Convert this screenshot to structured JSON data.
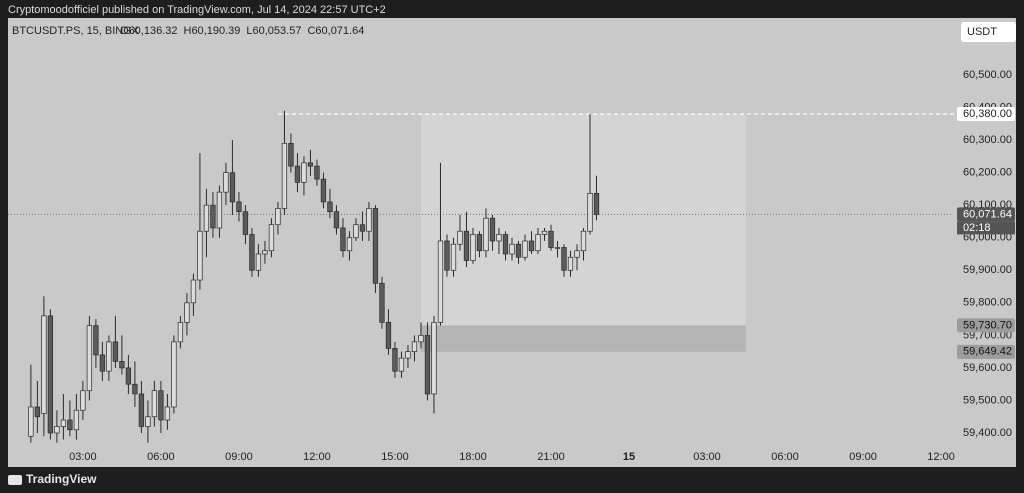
{
  "header": "Cryptomoodofficiel published on TradingView.com, Jul 14, 2024 22:57 UTC+2",
  "footer": "TradingView",
  "currency_button": "USDT",
  "chart_data": {
    "type": "candlestick",
    "symbol": "BTCUSDT.PS, 15, BINGX",
    "ohlc_labels": [
      "O60,136.32",
      "H60,190.39",
      "L60,053.57",
      "C60,071.64"
    ],
    "background": "#c9c9c9",
    "up_color": "#dcdcdc",
    "down_color": "#5b5b5b",
    "x": [
      1,
      1.25,
      1.5,
      1.75,
      2,
      2.25,
      2.5,
      2.75,
      3,
      3.25,
      3.5,
      3.75,
      4,
      4.25,
      4.5,
      4.75,
      5,
      5.25,
      5.5,
      5.75,
      6,
      6.25,
      6.5,
      6.75,
      7,
      7.25,
      7.5,
      7.75,
      8,
      8.25,
      8.5,
      8.75,
      9,
      9.25,
      9.5,
      9.75,
      10,
      10.25,
      10.5,
      10.75,
      11,
      11.25,
      11.5,
      11.75,
      12,
      12.25,
      12.5,
      12.75,
      13,
      13.25,
      13.5,
      13.75,
      14,
      14.25,
      14.5,
      14.75,
      15,
      15.25,
      15.5,
      15.75,
      16,
      16.25,
      16.5,
      16.75,
      17,
      17.25,
      17.5,
      17.75,
      18,
      18.25,
      18.5,
      18.75,
      19,
      19.25,
      19.5,
      19.75,
      20,
      20.25,
      20.5,
      20.75,
      21,
      21.25,
      21.5,
      21.75,
      22,
      22.25,
      22.5,
      22.75
    ],
    "open": [
      59390,
      59480,
      59460,
      59760,
      59400,
      59420,
      59440,
      59410,
      59470,
      59530,
      59730,
      59640,
      59590,
      59680,
      59620,
      59600,
      59550,
      59520,
      59420,
      59450,
      59530,
      59440,
      59480,
      59680,
      59740,
      59800,
      59870,
      60020,
      60100,
      60030,
      60140,
      60200,
      60110,
      60080,
      60010,
      59900,
      59950,
      59960,
      60040,
      60090,
      60290,
      60220,
      60170,
      60230,
      60220,
      60180,
      60110,
      60080,
      60030,
      59960,
      60000,
      60040,
      60020,
      60090,
      59860,
      59740,
      59660,
      59590,
      59630,
      59650,
      59680,
      59700,
      59520,
      59740,
      59990,
      59900,
      59980,
      60020,
      59930,
      60010,
      59960,
      60060,
      59990,
      60010,
      59950,
      59980,
      59940,
      59990,
      59960,
      60010,
      60020,
      59970,
      59970,
      59900,
      59940,
      59960,
      60020,
      60136.32
    ],
    "high": [
      59610,
      59560,
      59820,
      59780,
      59470,
      59520,
      59500,
      59520,
      59560,
      59760,
      59750,
      59680,
      59700,
      59760,
      59700,
      59640,
      59620,
      59560,
      59500,
      59560,
      59560,
      59520,
      59700,
      59760,
      59830,
      59890,
      60260,
      60150,
      60140,
      60160,
      60230,
      60300,
      60140,
      60100,
      60030,
      59980,
      59990,
      60060,
      60110,
      60390,
      60320,
      60260,
      60250,
      60270,
      60240,
      60200,
      60150,
      60100,
      60060,
      60020,
      60060,
      60080,
      60110,
      60100,
      59880,
      59780,
      59680,
      59650,
      59670,
      59700,
      59740,
      59740,
      59760,
      60230,
      60010,
      60000,
      60070,
      60080,
      60030,
      60020,
      60090,
      60070,
      60030,
      60020,
      60000,
      59990,
      60010,
      60020,
      60030,
      60030,
      60040,
      59990,
      59980,
      59960,
      59980,
      60030,
      60380,
      60190.39
    ],
    "low": [
      59370,
      59400,
      59390,
      59380,
      59370,
      59380,
      59390,
      59380,
      59440,
      59500,
      59600,
      59560,
      59560,
      59600,
      59580,
      59520,
      59480,
      59400,
      59370,
      59420,
      59400,
      59410,
      59460,
      59660,
      59700,
      59760,
      59840,
      59940,
      60000,
      60000,
      60100,
      60070,
      60050,
      59980,
      59880,
      59880,
      59920,
      59940,
      60010,
      60070,
      60200,
      60140,
      60130,
      60190,
      60160,
      60090,
      60060,
      60010,
      59940,
      59930,
      59990,
      59990,
      59990,
      59830,
      59720,
      59640,
      59570,
      59570,
      59600,
      59620,
      59660,
      59500,
      59460,
      59730,
      59880,
      59880,
      59960,
      59910,
      59920,
      59940,
      59940,
      59960,
      59950,
      59930,
      59930,
      59920,
      59930,
      59950,
      59950,
      59990,
      59960,
      59940,
      59880,
      59880,
      59900,
      59930,
      60010,
      60053.57
    ],
    "close": [
      59480,
      59450,
      59760,
      59400,
      59420,
      59440,
      59410,
      59470,
      59530,
      59730,
      59640,
      59590,
      59680,
      59620,
      59600,
      59550,
      59520,
      59420,
      59450,
      59530,
      59440,
      59480,
      59680,
      59740,
      59800,
      59870,
      60020,
      60100,
      60030,
      60140,
      60200,
      60110,
      60080,
      60010,
      59900,
      59950,
      59960,
      60040,
      60090,
      60290,
      60220,
      60170,
      60230,
      60220,
      60180,
      60110,
      60080,
      60030,
      59960,
      60000,
      60040,
      60020,
      60090,
      59860,
      59740,
      59660,
      59590,
      59630,
      59650,
      59680,
      59700,
      59520,
      59740,
      59990,
      59900,
      59980,
      60020,
      59930,
      60010,
      59960,
      60060,
      59990,
      60010,
      59950,
      59980,
      59940,
      59990,
      59960,
      60010,
      60020,
      59970,
      59970,
      59900,
      59940,
      59960,
      60020,
      60136.32,
      60071.64
    ],
    "xlim": [
      0.12,
      36.42
    ],
    "ylim": [
      59354,
      60675
    ],
    "xticks": [
      {
        "value": 3,
        "label": "03:00"
      },
      {
        "value": 6,
        "label": "06:00"
      },
      {
        "value": 9,
        "label": "09:00"
      },
      {
        "value": 12,
        "label": "12:00"
      },
      {
        "value": 15,
        "label": "15:00"
      },
      {
        "value": 18,
        "label": "18:00"
      },
      {
        "value": 21,
        "label": "21:00"
      },
      {
        "value": 24,
        "label": "15"
      },
      {
        "value": 27,
        "label": "03:00"
      },
      {
        "value": 30,
        "label": "06:00"
      },
      {
        "value": 33,
        "label": "09:00"
      },
      {
        "value": 36,
        "label": "12:00"
      }
    ],
    "yticks": [
      {
        "value": 59400,
        "label": "59,400.00"
      },
      {
        "value": 59500,
        "label": "59,500.00"
      },
      {
        "value": 59600,
        "label": "59,600.00"
      },
      {
        "value": 59700,
        "label": "59,700.00"
      },
      {
        "value": 59800,
        "label": "59,800.00"
      },
      {
        "value": 59900,
        "label": "59,900.00"
      },
      {
        "value": 60000,
        "label": "60,000.00"
      },
      {
        "value": 60100,
        "label": "60,100.00"
      },
      {
        "value": 60200,
        "label": "60,200.00"
      },
      {
        "value": 60300,
        "label": "60,300.00"
      },
      {
        "value": 60400,
        "label": "60,400.00"
      },
      {
        "value": 60500,
        "label": "60,500.00"
      }
    ],
    "zones": [
      {
        "x": [
          16,
          28.5
        ],
        "top": 60380,
        "bottom": 59730.7,
        "color": "#d4d4d4"
      },
      {
        "x": [
          16,
          28.5
        ],
        "top": 59730.7,
        "bottom": 59649.42,
        "color": "#b4b4b4"
      }
    ],
    "level_line": {
      "value": 60380,
      "x_start": 10.5
    },
    "price_labels": [
      {
        "value": 60380,
        "label": "60,380.00",
        "bg": "#ffffff",
        "fg": "#222222"
      },
      {
        "value": 60071.64,
        "label": "60,071.64",
        "bg": "#555555",
        "fg": "#ffffff"
      },
      {
        "value": 59730.7,
        "label": "59,730.70",
        "bg": "#9c9c9c",
        "fg": "#111111"
      },
      {
        "value": 59649.42,
        "label": "59,649.42",
        "bg": "#9c9c9c",
        "fg": "#111111"
      }
    ],
    "countdown": "02:18"
  }
}
